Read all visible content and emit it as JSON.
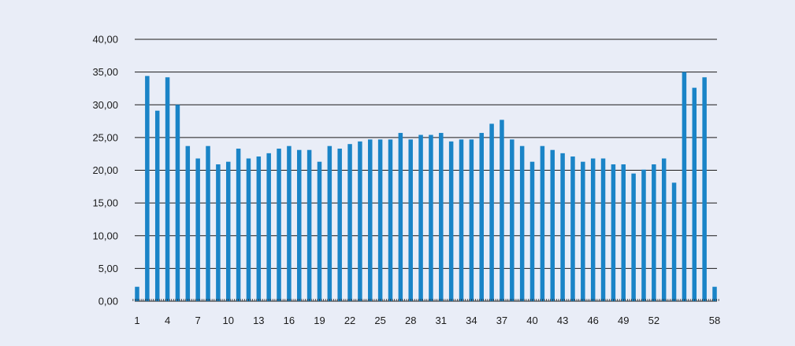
{
  "chart_data": {
    "type": "bar",
    "title": "",
    "xlabel": "",
    "ylabel": "",
    "ylim": [
      0,
      40
    ],
    "grid": true,
    "legend": "none",
    "y_ticks": [
      "0,00",
      "5,00",
      "10,00",
      "15,00",
      "20,00",
      "25,00",
      "30,00",
      "35,00",
      "40,00"
    ],
    "x_tick_labels": [
      "1",
      "4",
      "7",
      "10",
      "13",
      "16",
      "19",
      "22",
      "25",
      "28",
      "31",
      "34",
      "37",
      "40",
      "43",
      "46",
      "49",
      "52",
      "58"
    ],
    "x_tick_categories": [
      1,
      4,
      7,
      10,
      13,
      16,
      19,
      22,
      25,
      28,
      31,
      34,
      37,
      40,
      43,
      46,
      49,
      52,
      58
    ],
    "categories": [
      1,
      2,
      3,
      4,
      5,
      6,
      7,
      8,
      9,
      10,
      11,
      12,
      13,
      14,
      15,
      16,
      17,
      18,
      19,
      20,
      21,
      22,
      23,
      24,
      25,
      26,
      27,
      28,
      29,
      30,
      31,
      32,
      33,
      34,
      35,
      36,
      37,
      38,
      39,
      40,
      41,
      42,
      43,
      44,
      45,
      46,
      47,
      48,
      49,
      50,
      51,
      52,
      53,
      54,
      55,
      56,
      57,
      58
    ],
    "values": [
      2.2,
      34.4,
      29.1,
      34.2,
      30.0,
      23.7,
      21.8,
      23.7,
      20.9,
      21.3,
      23.3,
      21.8,
      22.1,
      22.6,
      23.3,
      23.7,
      23.1,
      23.1,
      21.3,
      23.7,
      23.3,
      24.0,
      24.4,
      24.7,
      24.7,
      24.7,
      25.7,
      24.7,
      25.4,
      25.4,
      25.7,
      24.4,
      24.7,
      24.7,
      25.7,
      27.1,
      27.7,
      24.7,
      23.7,
      21.3,
      23.7,
      23.1,
      22.6,
      22.1,
      21.3,
      21.8,
      21.8,
      20.9,
      20.9,
      19.5,
      20.1,
      20.9,
      21.8,
      18.1,
      35.0,
      32.6,
      34.2,
      2.2
    ],
    "colors": {
      "bar": "#1a84c7",
      "grid": "#1a1a1a",
      "background": "#e9edf7"
    }
  }
}
